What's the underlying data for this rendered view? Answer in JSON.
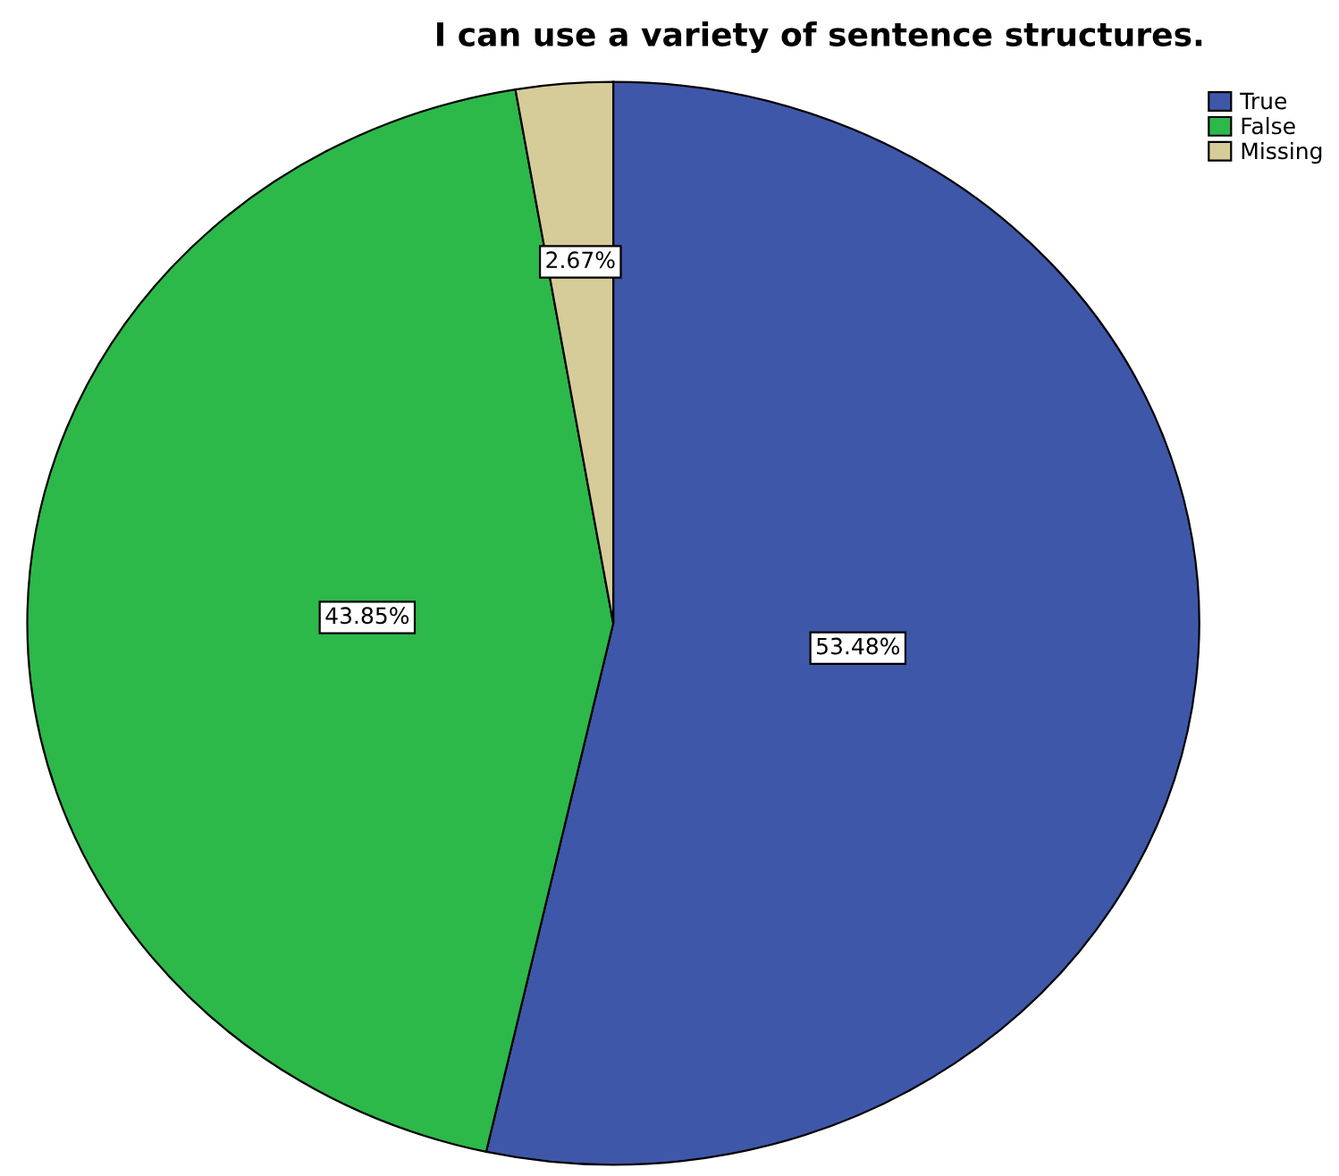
{
  "chart_data": {
    "type": "pie",
    "title": "I can use a variety of sentence structures.",
    "categories": [
      "True",
      "False",
      "Missing"
    ],
    "values": [
      53.48,
      43.85,
      2.67
    ],
    "colors": [
      "#3f57a8",
      "#2db84a",
      "#d6cc9a"
    ],
    "value_labels": [
      "53.48%",
      "43.85%",
      "2.67%"
    ],
    "legend": "top right"
  }
}
